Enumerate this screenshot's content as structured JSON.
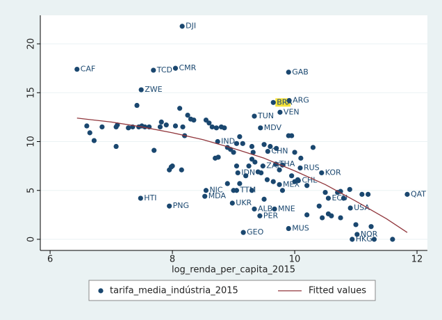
{
  "chart_data": {
    "type": "scatter",
    "x_label": "log_renda_per_capita_2015",
    "xlim": [
      5.84,
      12.17
    ],
    "ylim": [
      -1.14,
      22.92
    ],
    "xticks": [
      6,
      8,
      10,
      12
    ],
    "yticks": [
      0,
      5,
      10,
      15,
      20
    ],
    "grid": true,
    "legend": "bottom",
    "highlight": {
      "point": 6,
      "color": "#f7e33a"
    },
    "series": [
      {
        "name": "tarifa_media_indústria_2015",
        "type": "scatter",
        "color": "#1a476f",
        "x": [
          8.16,
          6.44,
          7.69,
          8.05,
          9.9,
          7.49,
          9.65,
          9.91,
          9.76,
          9.34,
          9.44,
          8.74,
          9.56,
          9.48,
          9.69,
          9.07,
          10.09,
          10.44,
          10.06,
          9.75,
          8.55,
          9.05,
          7.48,
          8.53,
          10.55,
          11.84,
          7.95,
          8.98,
          10.91,
          9.34,
          9.67,
          9.43,
          9.16,
          9.9,
          11.02,
          10.94,
          6.6,
          6.65,
          6.72,
          6.85,
          7.08,
          7.08,
          7.1,
          7.28,
          7.35,
          7.42,
          7.45,
          7.5,
          7.55,
          7.62,
          7.7,
          7.8,
          7.82,
          7.9,
          7.95,
          7.98,
          8.0,
          8.05,
          8.12,
          8.15,
          8.17,
          8.2,
          8.25,
          8.3,
          8.35,
          8.55,
          8.6,
          8.65,
          8.7,
          8.72,
          8.75,
          8.8,
          8.85,
          8.9,
          8.95,
          9.0,
          9.05,
          9.05,
          9.1,
          9.15,
          9.2,
          9.25,
          9.3,
          9.3,
          9.32,
          9.35,
          9.3,
          9.45,
          9.5,
          9.55,
          9.6,
          9.65,
          9.7,
          9.75,
          9.8,
          9.9,
          9.95,
          9.95,
          10.0,
          10.05,
          10.1,
          10.2,
          10.2,
          10.3,
          10.4,
          10.45,
          10.5,
          10.55,
          10.6,
          10.7,
          10.75,
          10.75,
          10.8,
          10.9,
          11.0,
          11.1,
          11.2,
          11.25,
          11.3,
          11.6,
          9.0,
          8.9,
          9.1,
          9.4,
          9.5,
          9.8,
          10.0
        ],
        "values": [
          21.8,
          17.4,
          17.3,
          17.5,
          17.1,
          15.3,
          14.0,
          14.2,
          13.0,
          12.6,
          11.4,
          10.0,
          9.0,
          7.5,
          7.7,
          6.8,
          7.3,
          6.8,
          6.0,
          5.6,
          5.0,
          5.0,
          4.2,
          4.4,
          4.2,
          4.6,
          3.4,
          3.7,
          3.2,
          3.1,
          3.1,
          2.4,
          0.7,
          1.1,
          0.5,
          0.0,
          11.6,
          10.9,
          10.1,
          11.5,
          11.5,
          9.5,
          11.7,
          11.4,
          11.5,
          13.7,
          11.5,
          11.6,
          11.5,
          11.5,
          9.1,
          11.5,
          12.0,
          11.7,
          7.1,
          7.4,
          7.5,
          11.6,
          13.4,
          7.1,
          11.5,
          10.6,
          12.7,
          12.3,
          12.2,
          12.2,
          11.9,
          11.5,
          8.3,
          11.4,
          8.4,
          11.5,
          11.4,
          9.4,
          9.2,
          8.9,
          9.8,
          7.5,
          10.5,
          9.8,
          6.5,
          7.5,
          8.2,
          9.5,
          8.9,
          7.9,
          5.0,
          6.8,
          9.7,
          6.1,
          9.5,
          5.9,
          9.3,
          7.1,
          7.6,
          10.6,
          10.6,
          6.5,
          8.9,
          6.1,
          8.3,
          5.5,
          2.5,
          9.4,
          3.4,
          2.2,
          4.8,
          2.6,
          2.4,
          4.8,
          2.2,
          4.9,
          4.2,
          5.1,
          1.5,
          4.6,
          4.6,
          1.3,
          0.0,
          0.0,
          5.0,
          5.7,
          5.7,
          6.9,
          4.1,
          5.0,
          5.9
        ],
        "labels": [
          "DJI",
          "CAF",
          "TCD",
          "CMR",
          "GAB",
          "ZWE",
          "BRA",
          "ARG",
          "VEN",
          "TUN",
          "MDV",
          "IND",
          "CHN",
          "ZAF",
          "THA",
          "IDN",
          "RUS",
          "KOR",
          "CHL",
          "MEX",
          "NIC",
          "TTM",
          "HTI",
          "MDA",
          "ECU",
          "QAT",
          "PNG",
          "UKR",
          "USA",
          "ALB",
          "MNE",
          "PER",
          "GEO",
          "MUS",
          "NOR",
          "HKG",
          null,
          null,
          null,
          null,
          null,
          null,
          null,
          null,
          null,
          null,
          null,
          null,
          null,
          null,
          null,
          null,
          null,
          null,
          null,
          null,
          null,
          null,
          null,
          null,
          null,
          null,
          null,
          null,
          null,
          null,
          null,
          null,
          null,
          null,
          null,
          null,
          null,
          null,
          null,
          null,
          null,
          null,
          null,
          null,
          null,
          null,
          null,
          null,
          null,
          null,
          null,
          null,
          null,
          null,
          null,
          null,
          null,
          null,
          null,
          null,
          null,
          null,
          null,
          null,
          null,
          null,
          null,
          null,
          null,
          null,
          null,
          null,
          null,
          null,
          null,
          null,
          null,
          null,
          null,
          null,
          null,
          null,
          null,
          null,
          null,
          null,
          null,
          null,
          null
        ]
      },
      {
        "name": "Fitted values",
        "type": "line",
        "color": "#90353b",
        "x": [
          6.44,
          7,
          7.5,
          8,
          8.5,
          9,
          9.5,
          10,
          10.5,
          11,
          11.5,
          11.84
        ],
        "values": [
          12.4,
          12.0,
          11.5,
          10.9,
          10.2,
          9.3,
          8.3,
          7.0,
          5.6,
          3.9,
          2.1,
          0.7
        ]
      }
    ]
  }
}
